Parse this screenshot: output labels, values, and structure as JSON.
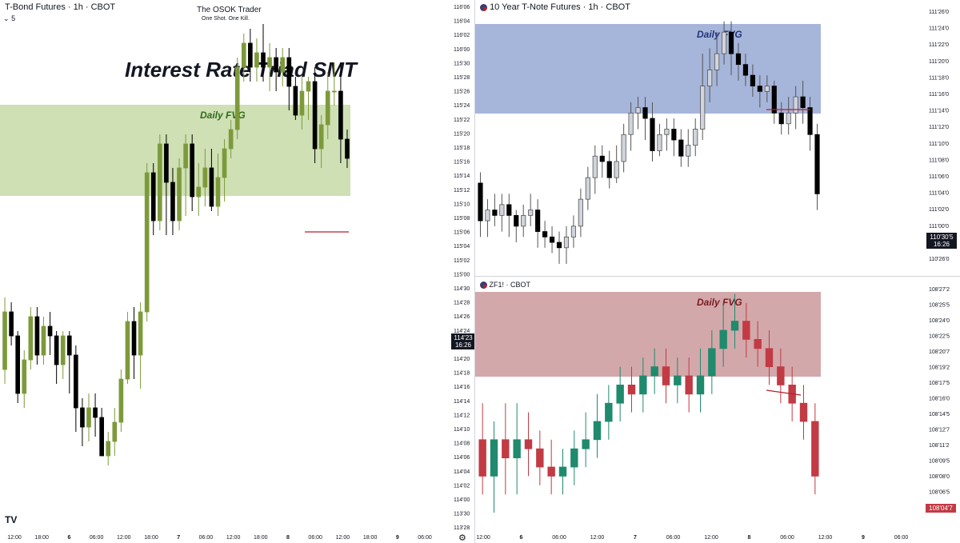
{
  "left": {
    "title": "T-Bond Futures · 1h · CBOT",
    "interval_badge": "5",
    "center_title": "The OSOK Trader",
    "center_sub": "One Shot. One Kill.",
    "headline": "Interest Rate Triad SMT",
    "fvg_label": "Daily FVG",
    "fvg_color": "#cfe0b5",
    "fvg_text_color": "#2e6b1a",
    "bull_color": "#7d9a3a",
    "bear_color": "#000000",
    "price_badge": [
      "114'23",
      "16:26"
    ],
    "x_ticks": [
      "12:00",
      "18:00",
      "6",
      "06:00",
      "12:00",
      "18:00",
      "7",
      "06:00",
      "12:00",
      "18:00",
      "8",
      "06:00",
      "12:00",
      "18:00",
      "9",
      "06:00"
    ],
    "logo": "TV"
  },
  "right_top": {
    "title": "10 Year T-Note Futures · 1h · CBOT",
    "fvg_label": "Daily FVG",
    "fvg_color": "#a6b5da",
    "fvg_text_color": "#22357a",
    "bull_color": "#d1d4dc",
    "bear_color": "#000000",
    "price_badge": [
      "110'30'5",
      "16:26"
    ]
  },
  "right_bottom": {
    "title": "ZF1! · CBOT",
    "fvg_label": "Daily FVG",
    "fvg_color": "#d3a8aa",
    "fvg_text_color": "#7a1a1f",
    "bull_color": "#1f8a6d",
    "bear_color": "#c23a44",
    "price_badge": "108'04'7",
    "x_ticks": [
      "12:00",
      "6",
      "06:00",
      "12:00",
      "7",
      "06:00",
      "12:00",
      "8",
      "06:00",
      "12:00",
      "9",
      "06:00"
    ]
  },
  "chart_data": [
    {
      "type": "candlestick",
      "title": "T-Bond Futures · 1h · CBOT",
      "y_ticks": [
        "116'06",
        "116'04",
        "116'02",
        "116'00",
        "115'30",
        "115'28",
        "115'26",
        "115'24",
        "115'22",
        "115'20",
        "115'18",
        "115'16",
        "115'14",
        "115'12",
        "115'10",
        "115'08",
        "115'06",
        "115'04",
        "115'02",
        "115'00",
        "114'30",
        "114'28",
        "114'26",
        "114'24",
        "114'22",
        "114'20",
        "114'18",
        "114'16",
        "114'14",
        "114'12",
        "114'10",
        "114'08",
        "114'06",
        "114'04",
        "114'02",
        "114'00",
        "113'30",
        "113'28"
      ],
      "candles": [
        [
          114.56,
          114.8,
          114.5,
          114.86
        ],
        [
          114.8,
          114.7,
          114.66,
          114.84
        ],
        [
          114.7,
          114.46,
          114.42,
          114.72
        ],
        [
          114.46,
          114.6,
          114.4,
          114.64
        ],
        [
          114.6,
          114.78,
          114.56,
          114.82
        ],
        [
          114.78,
          114.62,
          114.58,
          114.82
        ],
        [
          114.62,
          114.74,
          114.58,
          114.78
        ],
        [
          114.74,
          114.7,
          114.62,
          114.8
        ],
        [
          114.7,
          114.58,
          114.5,
          114.72
        ],
        [
          114.58,
          114.7,
          114.52,
          114.72
        ],
        [
          114.7,
          114.62,
          114.46,
          114.72
        ],
        [
          114.62,
          114.4,
          114.3,
          114.66
        ],
        [
          114.4,
          114.32,
          114.24,
          114.44
        ],
        [
          114.32,
          114.4,
          114.26,
          114.46
        ],
        [
          114.4,
          114.36,
          114.28,
          114.46
        ],
        [
          114.36,
          114.2,
          114.2,
          114.4
        ],
        [
          114.2,
          114.26,
          114.16,
          114.3
        ],
        [
          114.26,
          114.34,
          114.2,
          114.4
        ],
        [
          114.34,
          114.52,
          114.3,
          114.56
        ],
        [
          114.52,
          114.76,
          114.5,
          114.8
        ],
        [
          114.76,
          114.62,
          114.52,
          114.82
        ],
        [
          114.62,
          114.8,
          114.48,
          114.84
        ],
        [
          114.8,
          115.38,
          114.76,
          115.42
        ],
        [
          115.38,
          115.18,
          115.12,
          115.42
        ],
        [
          115.18,
          115.5,
          115.14,
          115.54
        ],
        [
          115.5,
          115.34,
          115.12,
          115.54
        ],
        [
          115.34,
          115.18,
          115.12,
          115.4
        ],
        [
          115.18,
          115.4,
          115.14,
          115.44
        ],
        [
          115.4,
          115.5,
          115.2,
          115.54
        ],
        [
          115.5,
          115.28,
          115.22,
          115.54
        ],
        [
          115.28,
          115.32,
          115.2,
          115.42
        ],
        [
          115.32,
          115.4,
          115.24,
          115.48
        ],
        [
          115.4,
          115.24,
          115.22,
          115.48
        ],
        [
          115.24,
          115.36,
          115.2,
          115.46
        ],
        [
          115.36,
          115.48,
          115.26,
          115.52
        ],
        [
          115.48,
          115.56,
          115.44,
          115.6
        ],
        [
          115.56,
          115.82,
          115.52,
          115.86
        ],
        [
          115.82,
          115.92,
          115.76,
          115.96
        ],
        [
          115.92,
          115.82,
          115.76,
          115.98
        ],
        [
          115.82,
          115.88,
          115.76,
          115.94
        ],
        [
          115.88,
          115.82,
          115.76,
          116.0
        ],
        [
          115.82,
          115.86,
          115.72,
          115.92
        ],
        [
          115.86,
          115.8,
          115.72,
          115.9
        ],
        [
          115.8,
          115.86,
          115.74,
          115.9
        ],
        [
          115.86,
          115.74,
          115.64,
          115.9
        ],
        [
          115.74,
          115.62,
          115.6,
          115.78
        ],
        [
          115.62,
          115.72,
          115.56,
          115.78
        ],
        [
          115.72,
          115.76,
          115.6,
          115.78
        ],
        [
          115.76,
          115.48,
          115.42,
          115.82
        ],
        [
          115.48,
          115.58,
          115.4,
          115.62
        ],
        [
          115.58,
          115.72,
          115.52,
          115.8
        ],
        [
          115.72,
          115.72,
          115.66,
          115.84
        ],
        [
          115.72,
          115.52,
          115.42,
          115.84
        ],
        [
          115.52,
          115.44,
          115.4,
          115.56
        ]
      ]
    },
    {
      "type": "candlestick",
      "title": "10 Year T-Note Futures · 1h · CBOT",
      "y_ticks": [
        "111'26'0",
        "111'24'0",
        "111'22'0",
        "111'20'0",
        "111'18'0",
        "111'16'0",
        "111'14'0",
        "111'12'0",
        "111'10'0",
        "111'08'0",
        "111'06'0",
        "111'04'0",
        "111'02'0",
        "111'00'0",
        "110'28'0",
        "110'26'0"
      ],
      "candles": [
        [
          111.1,
          110.96,
          110.9,
          111.14
        ],
        [
          110.96,
          111.0,
          110.9,
          111.04
        ],
        [
          111.0,
          110.98,
          110.94,
          111.06
        ],
        [
          110.98,
          111.02,
          110.92,
          111.06
        ],
        [
          111.02,
          110.98,
          110.9,
          111.06
        ],
        [
          110.98,
          110.94,
          110.88,
          111.0
        ],
        [
          110.94,
          110.98,
          110.9,
          111.02
        ],
        [
          110.98,
          111.0,
          110.94,
          111.06
        ],
        [
          111.0,
          110.92,
          110.86,
          111.04
        ],
        [
          110.92,
          110.9,
          110.86,
          110.96
        ],
        [
          110.9,
          110.88,
          110.84,
          110.94
        ],
        [
          110.88,
          110.86,
          110.8,
          110.92
        ],
        [
          110.86,
          110.9,
          110.8,
          110.94
        ],
        [
          110.9,
          110.94,
          110.86,
          110.98
        ],
        [
          110.94,
          111.04,
          110.9,
          111.08
        ],
        [
          111.04,
          111.12,
          111.0,
          111.16
        ],
        [
          111.12,
          111.2,
          111.06,
          111.24
        ],
        [
          111.2,
          111.18,
          111.12,
          111.24
        ],
        [
          111.18,
          111.12,
          111.08,
          111.22
        ],
        [
          111.12,
          111.18,
          111.1,
          111.24
        ],
        [
          111.18,
          111.28,
          111.14,
          111.32
        ],
        [
          111.28,
          111.36,
          111.22,
          111.4
        ],
        [
          111.36,
          111.38,
          111.3,
          111.42
        ],
        [
          111.38,
          111.34,
          111.26,
          111.42
        ],
        [
          111.34,
          111.22,
          111.18,
          111.4
        ],
        [
          111.22,
          111.28,
          111.2,
          111.32
        ],
        [
          111.28,
          111.3,
          111.22,
          111.34
        ],
        [
          111.3,
          111.26,
          111.2,
          111.34
        ],
        [
          111.26,
          111.2,
          111.16,
          111.3
        ],
        [
          111.2,
          111.24,
          111.16,
          111.3
        ],
        [
          111.24,
          111.3,
          111.2,
          111.34
        ],
        [
          111.3,
          111.46,
          111.26,
          111.58
        ],
        [
          111.46,
          111.52,
          111.4,
          111.6
        ],
        [
          111.52,
          111.58,
          111.46,
          111.66
        ],
        [
          111.58,
          111.66,
          111.54,
          111.7
        ],
        [
          111.66,
          111.58,
          111.5,
          111.7
        ],
        [
          111.58,
          111.54,
          111.48,
          111.62
        ],
        [
          111.54,
          111.5,
          111.46,
          111.58
        ],
        [
          111.5,
          111.46,
          111.42,
          111.54
        ],
        [
          111.46,
          111.44,
          111.38,
          111.5
        ],
        [
          111.44,
          111.46,
          111.4,
          111.5
        ],
        [
          111.46,
          111.36,
          111.32,
          111.48
        ],
        [
          111.36,
          111.32,
          111.28,
          111.4
        ],
        [
          111.32,
          111.36,
          111.28,
          111.42
        ],
        [
          111.36,
          111.42,
          111.3,
          111.46
        ],
        [
          111.42,
          111.38,
          111.32,
          111.48
        ],
        [
          111.38,
          111.28,
          111.22,
          111.42
        ],
        [
          111.28,
          111.06,
          111.0,
          111.32
        ]
      ]
    },
    {
      "type": "candlestick",
      "title": "ZF1! · CBOT",
      "y_ticks": [
        "108'27'2",
        "108'25'5",
        "108'24'0",
        "108'22'5",
        "108'20'7",
        "108'19'2",
        "108'17'5",
        "108'16'0",
        "108'14'5",
        "108'12'7",
        "108'11'2",
        "108'09'5",
        "108'08'0",
        "108'06'5",
        "108'03'2"
      ],
      "candles": [
        [
          108.1,
          108.06,
          108.04,
          108.14
        ],
        [
          108.06,
          108.1,
          108.02,
          108.12
        ],
        [
          108.1,
          108.08,
          108.04,
          108.14
        ],
        [
          108.08,
          108.1,
          108.04,
          108.14
        ],
        [
          108.1,
          108.09,
          108.06,
          108.13
        ],
        [
          108.09,
          108.07,
          108.05,
          108.11
        ],
        [
          108.07,
          108.06,
          108.04,
          108.1
        ],
        [
          108.06,
          108.07,
          108.04,
          108.09
        ],
        [
          108.07,
          108.09,
          108.05,
          108.11
        ],
        [
          108.09,
          108.1,
          108.07,
          108.13
        ],
        [
          108.1,
          108.12,
          108.08,
          108.15
        ],
        [
          108.12,
          108.14,
          108.1,
          108.16
        ],
        [
          108.14,
          108.16,
          108.12,
          108.18
        ],
        [
          108.16,
          108.15,
          108.13,
          108.18
        ],
        [
          108.15,
          108.17,
          108.13,
          108.19
        ],
        [
          108.17,
          108.18,
          108.15,
          108.2
        ],
        [
          108.18,
          108.16,
          108.14,
          108.2
        ],
        [
          108.16,
          108.17,
          108.14,
          108.19
        ],
        [
          108.17,
          108.15,
          108.13,
          108.19
        ],
        [
          108.15,
          108.17,
          108.13,
          108.2
        ],
        [
          108.17,
          108.2,
          108.15,
          108.22
        ],
        [
          108.2,
          108.22,
          108.18,
          108.25
        ],
        [
          108.22,
          108.23,
          108.2,
          108.26
        ],
        [
          108.23,
          108.21,
          108.19,
          108.25
        ],
        [
          108.21,
          108.2,
          108.18,
          108.23
        ],
        [
          108.2,
          108.18,
          108.16,
          108.22
        ],
        [
          108.18,
          108.16,
          108.14,
          108.2
        ],
        [
          108.16,
          108.14,
          108.12,
          108.18
        ],
        [
          108.14,
          108.12,
          108.1,
          108.16
        ],
        [
          108.12,
          108.06,
          108.04,
          108.14
        ]
      ]
    }
  ]
}
